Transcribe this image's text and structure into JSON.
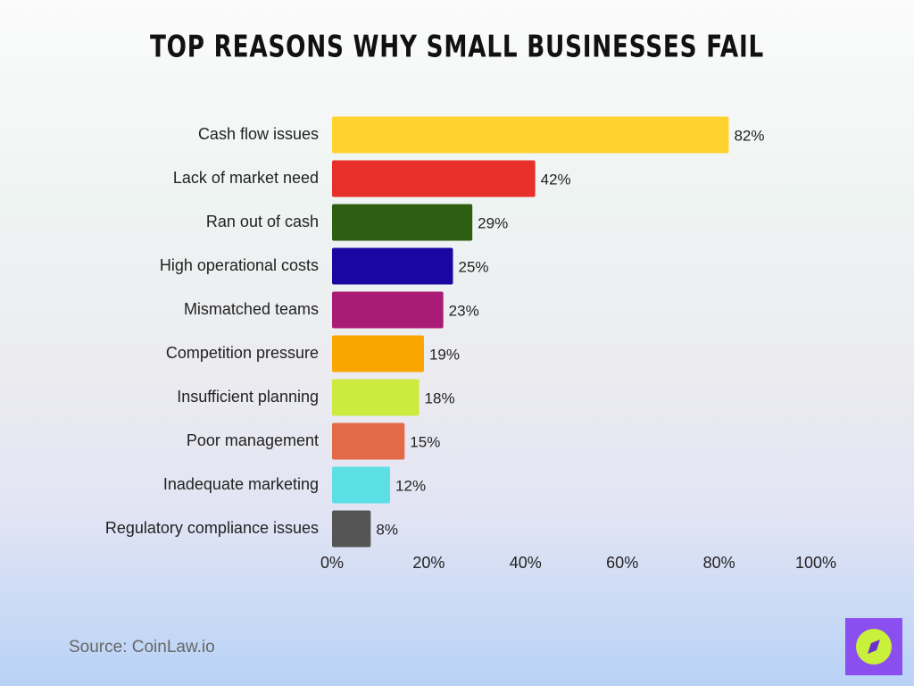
{
  "chart_data": {
    "type": "hbar",
    "title": "Top Reasons Why Small Businesses Fail",
    "categories": [
      "Cash flow issues",
      "Lack of market need",
      "Ran out of cash",
      "High operational costs",
      "Mismatched teams",
      "Competition pressure",
      "Insufficient planning",
      "Poor management",
      "Inadequate marketing",
      "Regulatory compliance issues"
    ],
    "values": [
      82,
      42,
      29,
      25,
      23,
      19,
      18,
      15,
      12,
      8
    ],
    "value_labels": [
      "82%",
      "42%",
      "29%",
      "25%",
      "23%",
      "19%",
      "18%",
      "15%",
      "12%",
      "8%"
    ],
    "colors": [
      "#ffd22e",
      "#e8302a",
      "#2d5e12",
      "#1a06a0",
      "#a91b74",
      "#fba600",
      "#cdea3f",
      "#e36a46",
      "#5ce0e6",
      "#555555"
    ],
    "xlim": [
      0,
      100
    ],
    "xticks": [
      {
        "value": 0,
        "label": "0%"
      },
      {
        "value": 20,
        "label": "20%"
      },
      {
        "value": 40,
        "label": "40%"
      },
      {
        "value": 60,
        "label": "60%"
      },
      {
        "value": 80,
        "label": "80%"
      },
      {
        "value": 100,
        "label": "100%"
      }
    ],
    "grid": false,
    "source": "Source: CoinLaw.io"
  }
}
